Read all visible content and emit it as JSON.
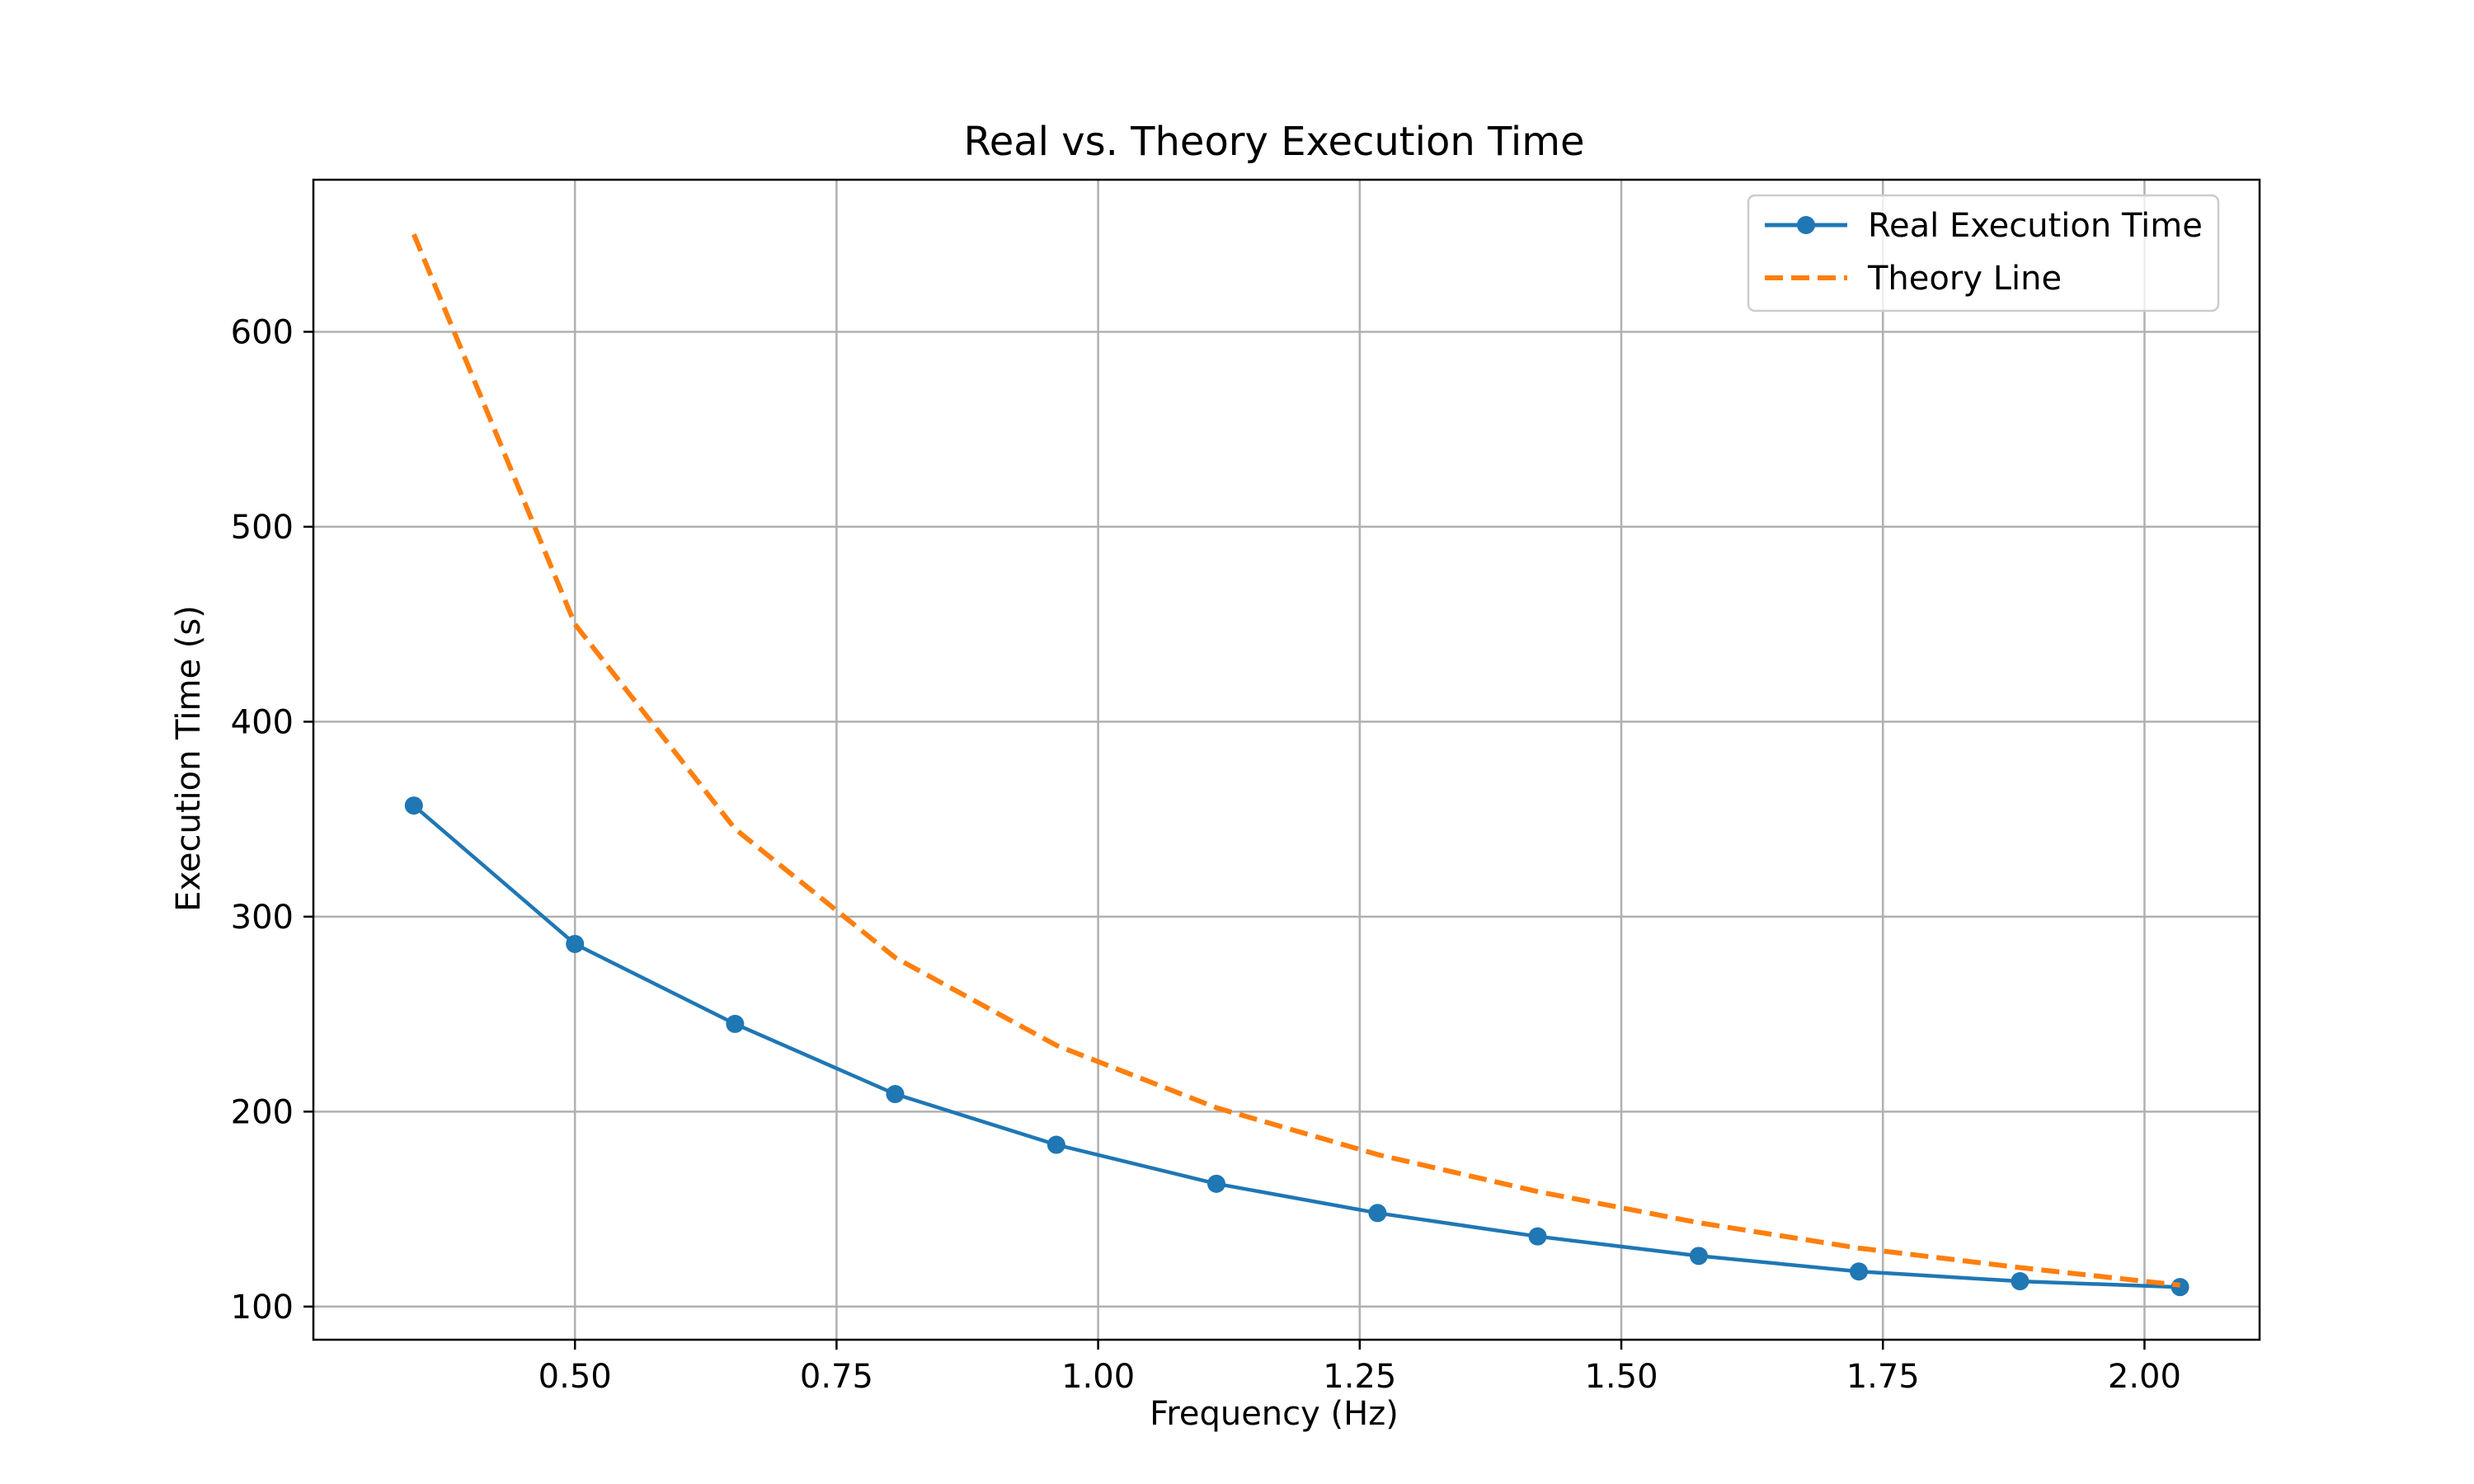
{
  "chart_data": {
    "type": "line",
    "title": "Real vs. Theory Execution Time",
    "xlabel": "Frequency (Hz)",
    "ylabel": "Execution Time (s)",
    "xlim": [
      0.25,
      2.11
    ],
    "ylim": [
      83,
      678
    ],
    "xticks": [
      0.5,
      0.75,
      1.0,
      1.25,
      1.5,
      1.75,
      2.0
    ],
    "xtick_labels": [
      "0.50",
      "0.75",
      "1.00",
      "1.25",
      "1.50",
      "1.75",
      "2.00"
    ],
    "yticks": [
      100,
      200,
      300,
      400,
      500,
      600
    ],
    "ytick_labels": [
      "100",
      "200",
      "300",
      "400",
      "500",
      "600"
    ],
    "grid": true,
    "legend_position": "top-right",
    "series": [
      {
        "name": "Real Execution Time",
        "color": "#1f77b4",
        "style": "solid",
        "marker": "circle",
        "x": [
          0.346,
          0.5,
          0.653,
          0.806,
          0.96,
          1.113,
          1.267,
          1.42,
          1.574,
          1.727,
          1.881,
          2.034
        ],
        "y": [
          357,
          286,
          245,
          209,
          183,
          163,
          148,
          136,
          126,
          118,
          113,
          110
        ]
      },
      {
        "name": "Theory Line",
        "color": "#ff7f0e",
        "style": "dashed",
        "marker": "none",
        "x": [
          0.346,
          0.5,
          0.653,
          0.806,
          0.96,
          1.113,
          1.267,
          1.42,
          1.574,
          1.727,
          1.881,
          2.034
        ],
        "y": [
          650,
          450,
          345,
          279,
          234,
          202,
          178,
          159,
          143,
          130,
          120,
          111
        ]
      }
    ]
  }
}
